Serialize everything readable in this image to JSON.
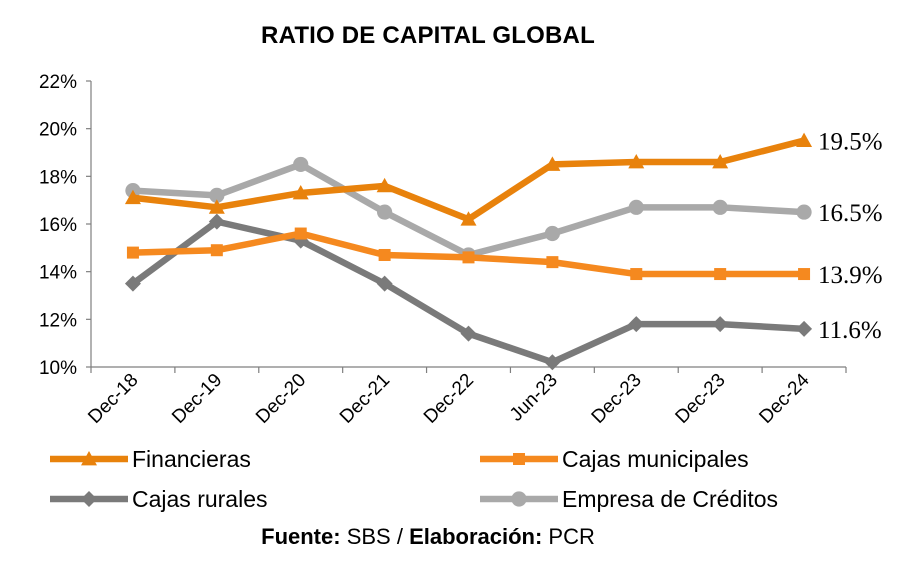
{
  "chart_data": {
    "type": "line",
    "title": "RATIO DE CAPITAL GLOBAL",
    "categories": [
      "Dec-18",
      "Dec-19",
      "Dec-20",
      "Dec-21",
      "Dec-22",
      "Jun-23",
      "Dec-23",
      "Dec-23",
      "Dec-24"
    ],
    "ylim": [
      10,
      22
    ],
    "yticks": [
      10,
      12,
      14,
      16,
      18,
      20,
      22
    ],
    "ytick_labels": [
      "10%",
      "12%",
      "14%",
      "16%",
      "18%",
      "20%",
      "22%"
    ],
    "grid": false,
    "legend_position": "bottom",
    "series": [
      {
        "name": "Financieras",
        "color": "#E8820C",
        "marker": "triangle",
        "values": [
          17.1,
          16.7,
          17.3,
          17.6,
          16.2,
          18.5,
          18.6,
          18.6,
          19.5
        ],
        "end_label": "19.5%"
      },
      {
        "name": "Cajas municipales",
        "color": "#F5891F",
        "marker": "square",
        "values": [
          14.8,
          14.9,
          15.6,
          14.7,
          14.6,
          14.4,
          13.9,
          13.9,
          13.9
        ],
        "end_label": "13.9%"
      },
      {
        "name": "Cajas rurales",
        "color": "#7A7A7A",
        "marker": "diamond",
        "values": [
          13.5,
          16.1,
          15.3,
          13.5,
          11.4,
          10.2,
          11.8,
          11.8,
          11.6
        ],
        "end_label": "11.6%"
      },
      {
        "name": "Empresa de Créditos",
        "color": "#A9A9A9",
        "marker": "circle",
        "values": [
          17.4,
          17.2,
          18.5,
          16.5,
          14.7,
          15.6,
          16.7,
          16.7,
          16.5
        ],
        "end_label": "16.5%"
      }
    ]
  },
  "source": {
    "fuente_label": "Fuente:",
    "fuente_value": " SBS / ",
    "elaboracion_label": "Elaboración:",
    "elaboracion_value": " PCR"
  }
}
